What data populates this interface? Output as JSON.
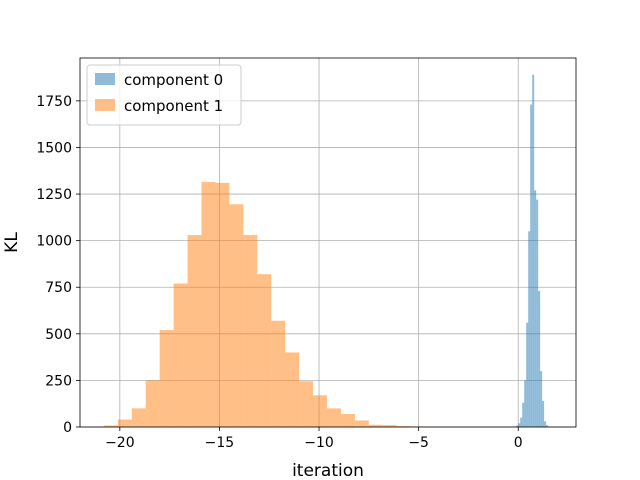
{
  "chart_data": {
    "type": "histogram",
    "xlabel": "iteration",
    "ylabel": "KL",
    "xlim": [
      -22.0,
      2.9
    ],
    "ylim": [
      0,
      1980
    ],
    "grid": true,
    "legend_position": "top-left",
    "x_ticks": [
      -20,
      -15,
      -10,
      -5,
      0
    ],
    "x_tick_labels": [
      "−20",
      "−15",
      "−10",
      "−5",
      "0"
    ],
    "y_ticks": [
      0,
      250,
      500,
      750,
      1000,
      1250,
      1500,
      1750
    ],
    "y_tick_labels": [
      "0",
      "250",
      "500",
      "750",
      "1000",
      "1250",
      "1500",
      "1750"
    ],
    "series": [
      {
        "name": "component 0",
        "color": "#1f77b4",
        "alpha": 0.5,
        "bin_edges": [
          -0.2,
          -0.1,
          0.0,
          0.1,
          0.2,
          0.3,
          0.4,
          0.5,
          0.6,
          0.7,
          0.8,
          0.9,
          1.0,
          1.1,
          1.2,
          1.3,
          1.4,
          1.5,
          1.6,
          1.7,
          1.8,
          1.9,
          2.0
        ],
        "counts": [
          3,
          8,
          20,
          50,
          130,
          250,
          560,
          1050,
          1730,
          1890,
          1270,
          1220,
          730,
          300,
          140,
          30,
          10,
          2,
          0,
          0,
          0,
          0
        ]
      },
      {
        "name": "component 1",
        "color": "#ff7f0e",
        "alpha": 0.5,
        "bin_edges": [
          -20.8,
          -20.1,
          -19.4,
          -18.7,
          -18.0,
          -17.3,
          -16.6,
          -15.9,
          -15.2,
          -14.5,
          -13.8,
          -13.1,
          -12.4,
          -11.7,
          -11.0,
          -10.3,
          -9.6,
          -8.9,
          -8.2,
          -7.5,
          -6.8,
          -6.1,
          -5.4,
          -4.7,
          -4.0,
          -3.3,
          -2.6
        ],
        "counts": [
          8,
          40,
          100,
          250,
          520,
          770,
          1030,
          1315,
          1310,
          1195,
          1030,
          820,
          570,
          400,
          245,
          170,
          100,
          70,
          35,
          12,
          10,
          5,
          3,
          1,
          1,
          0
        ]
      }
    ]
  }
}
